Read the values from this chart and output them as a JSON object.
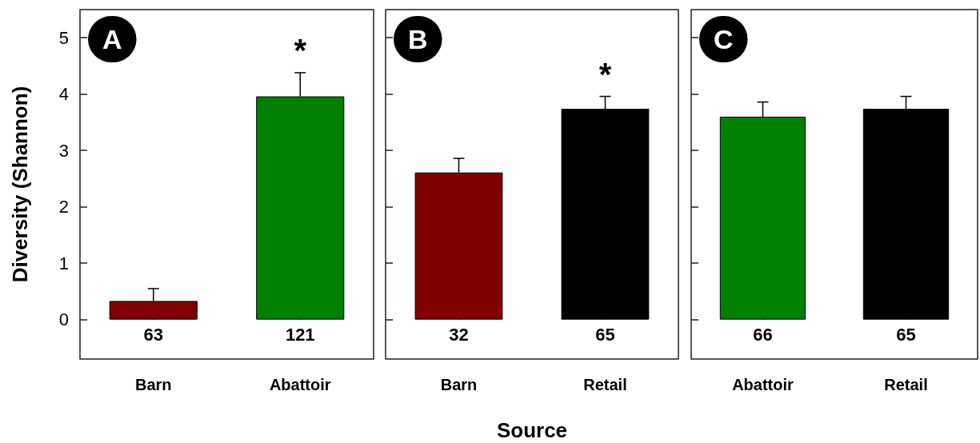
{
  "chart_data": [
    {
      "type": "bar",
      "title": "A",
      "ylabel": "Diversity (Shannon)",
      "categories": [
        "Barn",
        "Abattoir"
      ],
      "values": [
        0.33,
        3.96
      ],
      "colors": [
        "#800000",
        "#008000"
      ],
      "errors": [
        [
          0.33,
          0.55
        ],
        [
          3.96,
          4.38
        ]
      ],
      "ylim": [
        -0.7,
        5.5
      ],
      "yticks": [
        0,
        1,
        2,
        3,
        4,
        5
      ],
      "grid": false,
      "annotations": [
        "63",
        "121",
        {
          "text": "*",
          "x": "Abattoir",
          "y": 4.38
        }
      ]
    },
    {
      "type": "bar",
      "title": "B",
      "xlabel": "Source",
      "categories": [
        "Barn",
        "Retail"
      ],
      "values": [
        2.61,
        3.74
      ],
      "colors": [
        "#800000",
        "#000000"
      ],
      "errors": [
        [
          2.61,
          2.86
        ],
        [
          3.74,
          3.96
        ]
      ],
      "ylim": [
        -0.7,
        5.5
      ],
      "yticks": [
        0,
        1,
        2,
        3,
        4,
        5
      ],
      "tick_labels": "x",
      "grid": false,
      "annotations": [
        "32",
        "65",
        {
          "text": "*",
          "x": "Retail",
          "y": 3.96
        }
      ]
    },
    {
      "type": "bar",
      "title": "C",
      "categories": [
        "Abattoir",
        "Retail"
      ],
      "values": [
        3.6,
        3.74
      ],
      "colors": [
        "#008000",
        "#000000"
      ],
      "errors": [
        [
          3.6,
          3.86
        ],
        [
          3.74,
          3.96
        ]
      ],
      "ylim": [
        -0.7,
        5.5
      ],
      "yticks": [
        0,
        1,
        2,
        3,
        4,
        5
      ],
      "tick_labels": "x",
      "grid": false,
      "annotations": [
        "66",
        "65"
      ]
    }
  ]
}
